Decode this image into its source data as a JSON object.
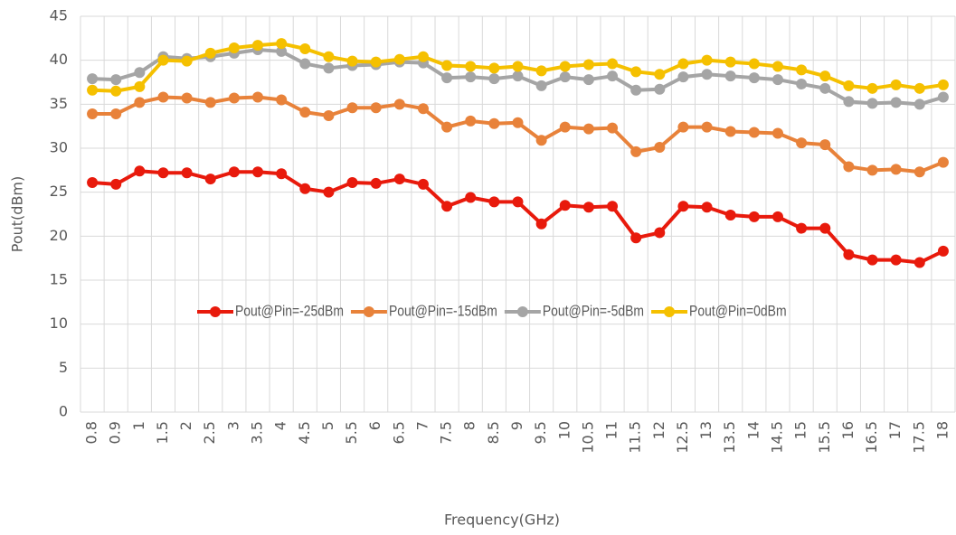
{
  "chart_data": {
    "type": "line",
    "x_label": "Frequency(GHz)",
    "y_label": "Pout(dBm)",
    "categories": [
      "0.8",
      "0.9",
      "1",
      "1.5",
      "2",
      "2.5",
      "3",
      "3.5",
      "4",
      "4.5",
      "5",
      "5.5",
      "6",
      "6.5",
      "7",
      "7.5",
      "8",
      "8.5",
      "9",
      "9.5",
      "10",
      "10.5",
      "11",
      "11.5",
      "12",
      "12.5",
      "13",
      "13.5",
      "14",
      "14.5",
      "15",
      "15.5",
      "16",
      "16.5",
      "17",
      "17.5",
      "18"
    ],
    "series": [
      {
        "name": "Pout@Pin=-25dBm",
        "color": "#e81a0c",
        "values": [
          26.1,
          25.9,
          27.4,
          27.2,
          27.2,
          26.5,
          27.3,
          27.3,
          27.1,
          25.4,
          25.0,
          26.1,
          26.0,
          26.5,
          25.9,
          23.4,
          24.4,
          23.9,
          23.9,
          21.4,
          23.5,
          23.3,
          23.4,
          19.8,
          20.4,
          23.4,
          23.3,
          22.4,
          22.2,
          22.2,
          20.9,
          20.9,
          17.9,
          17.3,
          17.3,
          17.0,
          18.3
        ]
      },
      {
        "name": "Pout@Pin=-15dBm",
        "color": "#e8823a",
        "values": [
          33.9,
          33.9,
          35.2,
          35.8,
          35.7,
          35.2,
          35.7,
          35.8,
          35.5,
          34.1,
          33.7,
          34.6,
          34.6,
          35.0,
          34.5,
          32.4,
          33.1,
          32.8,
          32.9,
          30.9,
          32.4,
          32.2,
          32.3,
          29.6,
          30.1,
          32.4,
          32.4,
          31.9,
          31.8,
          31.7,
          30.6,
          30.4,
          27.9,
          27.5,
          27.6,
          27.3,
          28.4
        ]
      },
      {
        "name": "Pout@Pin=-5dBm",
        "color": "#a5a5a5",
        "values": [
          37.9,
          37.8,
          38.6,
          40.4,
          40.2,
          40.4,
          40.8,
          41.2,
          41.0,
          39.6,
          39.1,
          39.4,
          39.5,
          39.8,
          39.7,
          38.0,
          38.1,
          37.9,
          38.2,
          37.1,
          38.1,
          37.8,
          38.2,
          36.6,
          36.7,
          38.1,
          38.4,
          38.2,
          38.0,
          37.8,
          37.3,
          36.8,
          35.3,
          35.1,
          35.2,
          35.0,
          35.8
        ]
      },
      {
        "name": "Pout@Pin=0dBm",
        "color": "#f5c000",
        "values": [
          36.6,
          36.5,
          37.0,
          40.0,
          39.9,
          40.8,
          41.4,
          41.7,
          41.9,
          41.3,
          40.4,
          39.9,
          39.8,
          40.1,
          40.4,
          39.4,
          39.3,
          39.1,
          39.3,
          38.8,
          39.3,
          39.5,
          39.6,
          38.7,
          38.4,
          39.6,
          40.0,
          39.8,
          39.6,
          39.3,
          38.9,
          38.2,
          37.1,
          36.8,
          37.2,
          36.8,
          37.2
        ]
      }
    ],
    "ylim": [
      0,
      45
    ],
    "yticks": [
      0,
      5,
      10,
      15,
      20,
      25,
      30,
      35,
      40,
      45
    ],
    "grid": true
  }
}
